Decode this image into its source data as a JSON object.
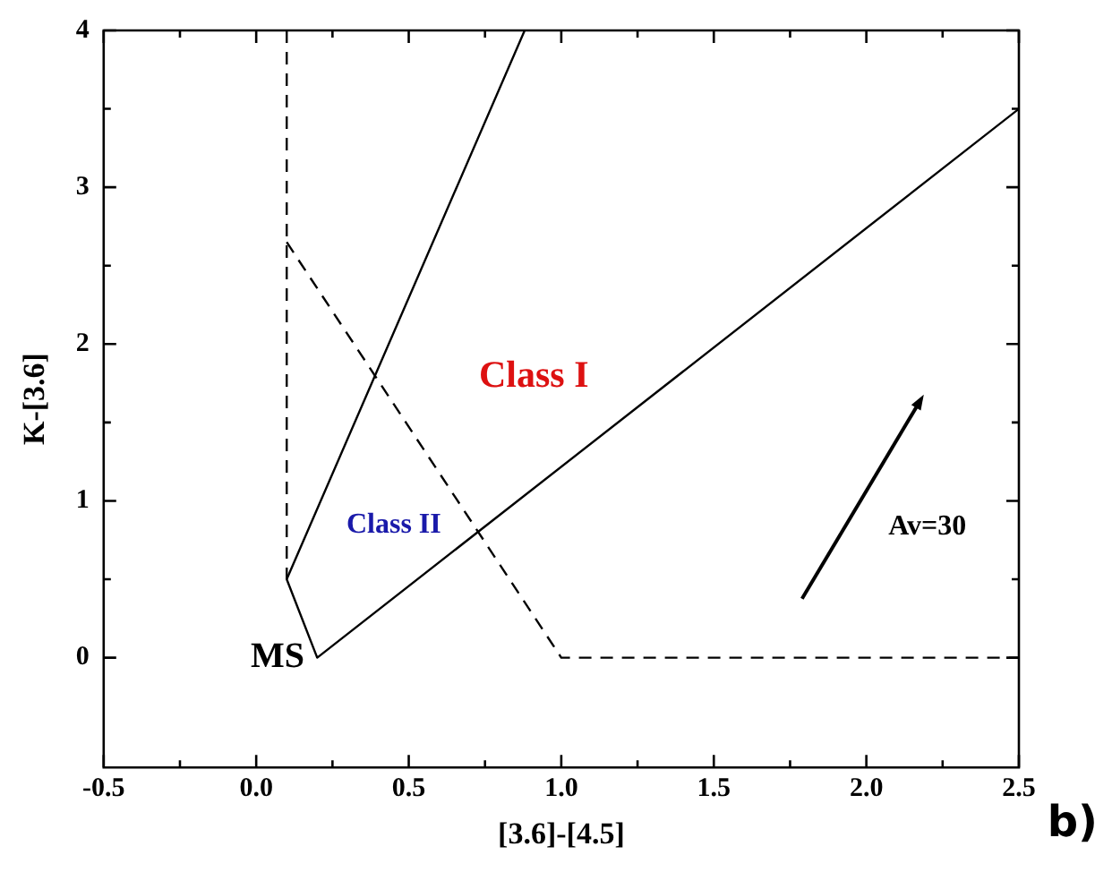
{
  "chart_data": {
    "type": "line",
    "xlabel": "[3.6]-[4.5]",
    "ylabel": "K-[3.6]",
    "marker": "none",
    "xlim": [
      -0.5,
      2.5
    ],
    "ylim": [
      -0.7,
      4
    ],
    "xticks": [
      -0.5,
      {
        "value": -0.25,
        "label": null
      },
      {
        "value": 0,
        "label": "0.0"
      },
      {
        "value": 0.25,
        "label": null
      },
      0.5,
      {
        "value": 0.75,
        "label": null
      },
      {
        "value": 1,
        "label": "1.0"
      },
      {
        "value": 1.25,
        "label": null
      },
      1.5,
      {
        "value": 1.75,
        "label": null
      },
      {
        "value": 2,
        "label": "2.0"
      },
      {
        "value": 2.25,
        "label": null
      },
      2.5
    ],
    "yticks": [
      0,
      {
        "value": 0.5,
        "label": null
      },
      1,
      {
        "value": 1.5,
        "label": null
      },
      2,
      {
        "value": 2.5,
        "label": null
      },
      3,
      {
        "value": 3.5,
        "label": null
      },
      4
    ],
    "series": [
      {
        "color": "#000000",
        "line_style": "solid",
        "x": [
          0.88,
          0.1,
          0.2,
          2.5
        ],
        "values": [
          4,
          0.5,
          0,
          3.5
        ]
      },
      {
        "color": "#000000",
        "line_style": "dashed",
        "x": [
          0.1,
          0.1
        ],
        "values": [
          4,
          0.5
        ]
      },
      {
        "color": "#000000",
        "line_style": "dashed",
        "x": [
          0.1,
          1.0,
          2.5
        ],
        "values": [
          2.65,
          0,
          0
        ]
      }
    ],
    "annotations": [
      "Class I",
      "Class II",
      "MS",
      "Av=30",
      "b)"
    ]
  }
}
